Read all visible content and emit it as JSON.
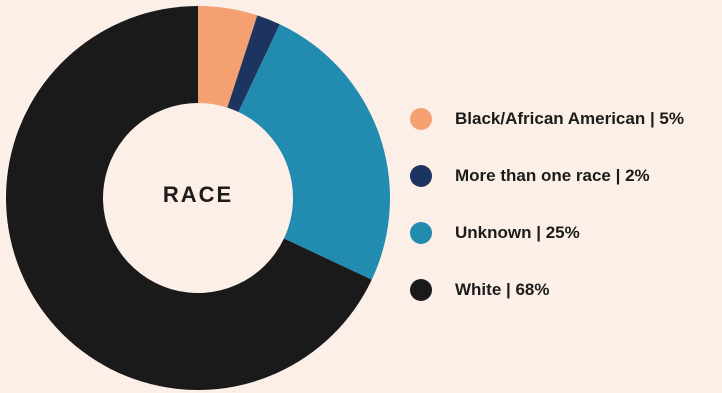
{
  "chart_data": {
    "type": "pie",
    "title": "RACE",
    "categories": [
      "Black/African American",
      "More than one race",
      "Unknown",
      "White"
    ],
    "values": [
      5,
      2,
      25,
      68
    ],
    "colors": [
      "#f4a070",
      "#1d3461",
      "#218bb0",
      "#1a1a1a"
    ],
    "legend": {
      "position": "right",
      "entries": [
        "Black/African American | 5%",
        "More than one race | 2%",
        "Unknown | 25%",
        "White | 68%"
      ]
    }
  }
}
